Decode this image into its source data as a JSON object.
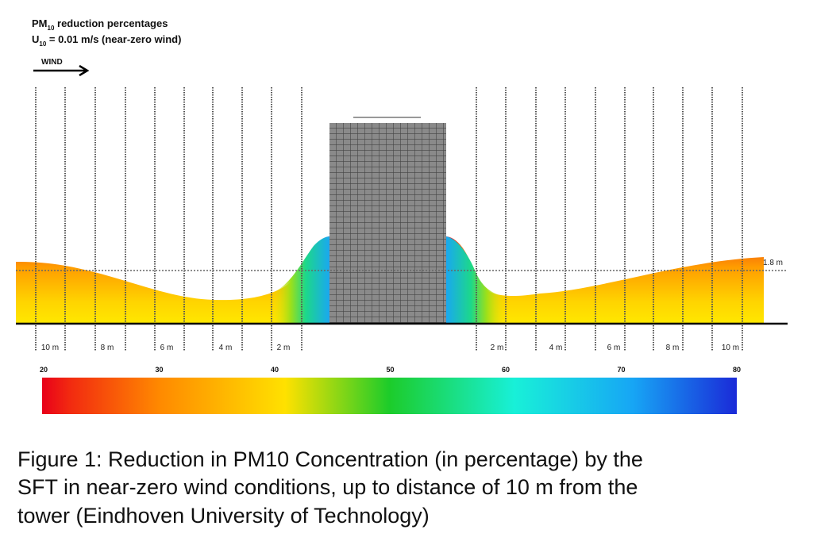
{
  "header": {
    "line1": {
      "main": "PM",
      "sub": "10",
      "rest": " reduction percentages"
    },
    "line2": {
      "main": "U",
      "sub": "10",
      "rest": " = 0.01 m/s (near-zero wind)"
    },
    "wind": "WIND"
  },
  "distances_left": [
    "10 m",
    "8 m",
    "6 m",
    "4 m",
    "2 m"
  ],
  "distances_right": [
    "2 m",
    "4 m",
    "6 m",
    "8 m",
    "10 m"
  ],
  "height_label": "1.8 m",
  "colorbar": {
    "range": [
      20,
      80
    ],
    "ticks": [
      20,
      30,
      40,
      50,
      60,
      70,
      80
    ]
  },
  "caption": [
    "Figure 1: Reduction in PM10 Concentration (in percentage) by the",
    "SFT in near-zero wind conditions, up to distance of 10 m from the",
    "tower (Eindhoven University of Technology)"
  ]
}
